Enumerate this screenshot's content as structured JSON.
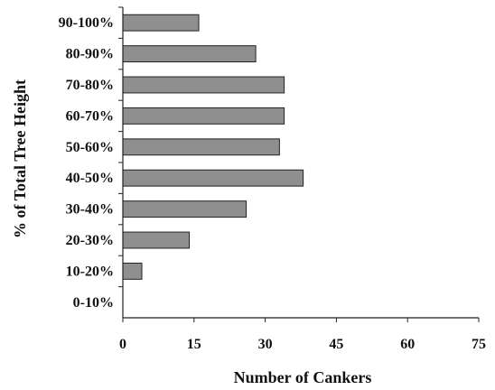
{
  "chart_data": {
    "type": "bar",
    "orientation": "horizontal",
    "categories": [
      "0-10%",
      "10-20%",
      "20-30%",
      "30-40%",
      "40-50%",
      "50-60%",
      "60-70%",
      "70-80%",
      "80-90%",
      "90-100%"
    ],
    "values": [
      0,
      4,
      14,
      26,
      38,
      33,
      34,
      34,
      28,
      16
    ],
    "title": "",
    "xlabel": "Number of Cankers",
    "ylabel": "% of Total Tree Height",
    "xlim": [
      0,
      75
    ],
    "xticks": [
      "0",
      "15",
      "30",
      "45",
      "60",
      "75"
    ],
    "grid": false,
    "legend": "none",
    "bar_color": "#8f8f8f"
  }
}
